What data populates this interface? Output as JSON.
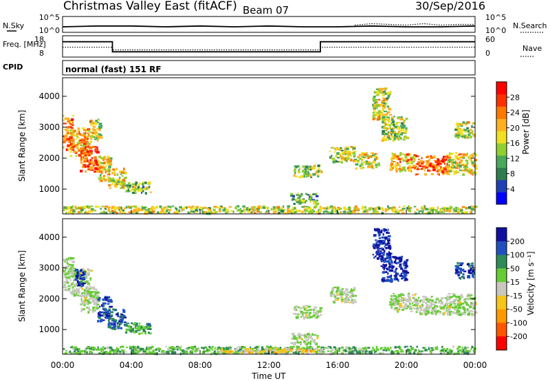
{
  "header": {
    "station": "Christmas Valley East (fitACF)",
    "beam": "Beam 07",
    "date": "30/Sep/2016"
  },
  "chart_data": [
    {
      "type": "line",
      "panel": "noise",
      "left_label": "N.Sky",
      "right_label": "N.Search",
      "left_ticks": [
        "10^5",
        "10^0"
      ],
      "right_ticks": [
        "10^5",
        "10^0"
      ],
      "series": [
        {
          "name": "N.Sky",
          "style": "solid",
          "x": [
            0,
            2,
            4,
            6,
            8,
            10,
            12,
            14,
            16,
            18,
            20,
            22,
            24
          ],
          "y": [
            0.35,
            0.4,
            0.4,
            0.35,
            0.4,
            0.35,
            0.4,
            0.35,
            0.35,
            0.4,
            0.35,
            0.35,
            0.4
          ]
        },
        {
          "name": "N.Search",
          "style": "dotted",
          "x": [
            17,
            18,
            19,
            20,
            21,
            22,
            23,
            24
          ],
          "y": [
            0.45,
            0.55,
            0.5,
            0.45,
            0.55,
            0.45,
            0.5,
            0.5
          ]
        }
      ]
    },
    {
      "type": "line",
      "panel": "frequency",
      "left_label": "Freq. [MHz]",
      "right_label": "Nave",
      "left_ticks": [
        "18",
        "8"
      ],
      "right_ticks": [
        "60",
        "0"
      ],
      "series": [
        {
          "name": "Freq.",
          "style": "solid",
          "x": [
            0,
            2.9,
            2.9,
            15.0,
            15.0,
            24
          ],
          "y": [
            15.2,
            15.2,
            10.5,
            10.5,
            15.2,
            15.2
          ]
        },
        {
          "name": "Nave",
          "style": "dotted",
          "x": [
            0,
            2.9,
            2.9,
            15.0,
            15.0,
            24
          ],
          "y": [
            12.6,
            12.6,
            11.4,
            11.4,
            12.6,
            12.6
          ]
        }
      ]
    },
    {
      "type": "table",
      "panel": "cpid",
      "label": "CPID",
      "text": "normal (fast) 151 RF"
    },
    {
      "type": "heatmap",
      "panel": "power",
      "ylabel": "Slant Range [km]",
      "yticks": [
        1000,
        2000,
        3000,
        4000
      ],
      "ylim": [
        200,
        4600
      ],
      "xlim": [
        0,
        24
      ],
      "colorbar": {
        "label": "Power [dB]",
        "ticks": [
          "4",
          "8",
          "12",
          "16",
          "20",
          "24",
          "28"
        ],
        "colors": [
          "#0000ff",
          "#1f3fb4",
          "#2e7d4d",
          "#49a85a",
          "#8fd030",
          "#f0e020",
          "#ffb020",
          "#ff7800",
          "#ff3000",
          "#ff0000"
        ]
      },
      "regions": [
        {
          "x0": 0.0,
          "x1": 0.6,
          "y0": 2300,
          "y1": 3400,
          "level": 0.75
        },
        {
          "x0": 0.4,
          "x1": 1.6,
          "y0": 2100,
          "y1": 3000,
          "level": 0.7
        },
        {
          "x0": 1.0,
          "x1": 2.0,
          "y0": 1600,
          "y1": 2400,
          "level": 0.85
        },
        {
          "x0": 1.5,
          "x1": 2.2,
          "y0": 2600,
          "y1": 3300,
          "level": 0.5
        },
        {
          "x0": 2.0,
          "x1": 2.8,
          "y0": 1300,
          "y1": 2100,
          "level": 0.6
        },
        {
          "x0": 2.6,
          "x1": 3.6,
          "y0": 1050,
          "y1": 1700,
          "level": 0.55
        },
        {
          "x0": 3.6,
          "x1": 5.1,
          "y0": 900,
          "y1": 1250,
          "level": 0.4
        },
        {
          "x0": 13.2,
          "x1": 14.8,
          "y0": 550,
          "y1": 900,
          "level": 0.35
        },
        {
          "x0": 13.4,
          "x1": 15.0,
          "y0": 1400,
          "y1": 1800,
          "level": 0.45
        },
        {
          "x0": 15.5,
          "x1": 17.0,
          "y0": 1900,
          "y1": 2400,
          "level": 0.5
        },
        {
          "x0": 17.0,
          "x1": 18.3,
          "y0": 1700,
          "y1": 2200,
          "level": 0.55
        },
        {
          "x0": 18.0,
          "x1": 19.0,
          "y0": 3300,
          "y1": 4300,
          "level": 0.5
        },
        {
          "x0": 18.5,
          "x1": 20.0,
          "y0": 2600,
          "y1": 3400,
          "level": 0.45
        },
        {
          "x0": 19.0,
          "x1": 20.5,
          "y0": 1600,
          "y1": 2200,
          "level": 0.65
        },
        {
          "x0": 20.5,
          "x1": 22.5,
          "y0": 1500,
          "y1": 2100,
          "level": 0.8
        },
        {
          "x0": 22.3,
          "x1": 24.0,
          "y0": 1500,
          "y1": 2200,
          "level": 0.6
        },
        {
          "x0": 22.8,
          "x1": 23.9,
          "y0": 2700,
          "y1": 3200,
          "level": 0.5
        },
        {
          "x0": 0.0,
          "x1": 24.0,
          "y0": 250,
          "y1": 480,
          "level": 0.5
        }
      ]
    },
    {
      "type": "heatmap",
      "panel": "velocity",
      "ylabel": "Slant Range [km]",
      "xlabel": "Time UT",
      "yticks": [
        1000,
        2000,
        3000,
        4000
      ],
      "ylim": [
        200,
        4600
      ],
      "xlim": [
        0,
        24
      ],
      "xticks": [
        "00:00",
        "04:00",
        "08:00",
        "12:00",
        "16:00",
        "20:00",
        "00:00"
      ],
      "colorbar": {
        "label": "Velocity [m s⁻¹]",
        "ticks": [
          "200",
          "100",
          "50",
          "15",
          "-15",
          "-50",
          "-100",
          "-200"
        ],
        "colors": [
          "#1010a0",
          "#2050c0",
          "#2e8b57",
          "#66cc33",
          "#c8c8c0",
          "#f5c518",
          "#ff9900",
          "#ff5500",
          "#ff0000"
        ]
      },
      "regions": [
        {
          "x0": 0.0,
          "x1": 0.6,
          "y0": 2300,
          "y1": 3400,
          "level": 0.45
        },
        {
          "x0": 0.4,
          "x1": 1.6,
          "y0": 2100,
          "y1": 3000,
          "level": 0.45
        },
        {
          "x0": 1.0,
          "x1": 2.0,
          "y0": 1600,
          "y1": 2400,
          "level": 0.45
        },
        {
          "x0": 0.7,
          "x1": 1.3,
          "y0": 2400,
          "y1": 3000,
          "level": 0.1
        },
        {
          "x0": 2.0,
          "x1": 2.8,
          "y0": 1300,
          "y1": 2100,
          "level": 0.1
        },
        {
          "x0": 2.6,
          "x1": 3.6,
          "y0": 1050,
          "y1": 1700,
          "level": 0.15
        },
        {
          "x0": 3.6,
          "x1": 5.1,
          "y0": 900,
          "y1": 1250,
          "level": 0.3
        },
        {
          "x0": 13.2,
          "x1": 14.8,
          "y0": 550,
          "y1": 900,
          "level": 0.45
        },
        {
          "x0": 13.4,
          "x1": 15.0,
          "y0": 1400,
          "y1": 1800,
          "level": 0.45
        },
        {
          "x0": 15.5,
          "x1": 17.0,
          "y0": 1900,
          "y1": 2400,
          "level": 0.45
        },
        {
          "x0": 18.0,
          "x1": 19.0,
          "y0": 3300,
          "y1": 4300,
          "level": 0.05
        },
        {
          "x0": 18.5,
          "x1": 20.0,
          "y0": 2600,
          "y1": 3400,
          "level": 0.05
        },
        {
          "x0": 19.0,
          "x1": 20.5,
          "y0": 1600,
          "y1": 2200,
          "level": 0.45
        },
        {
          "x0": 20.5,
          "x1": 22.5,
          "y0": 1500,
          "y1": 2100,
          "level": 0.45
        },
        {
          "x0": 22.3,
          "x1": 24.0,
          "y0": 1500,
          "y1": 2200,
          "level": 0.45
        },
        {
          "x0": 22.8,
          "x1": 23.9,
          "y0": 2700,
          "y1": 3200,
          "level": 0.1
        },
        {
          "x0": 0.0,
          "x1": 24.0,
          "y0": 250,
          "y1": 480,
          "level": 0.35
        },
        {
          "x0": 9.0,
          "x1": 15.0,
          "y0": 280,
          "y1": 420,
          "level": 0.6
        }
      ]
    }
  ]
}
